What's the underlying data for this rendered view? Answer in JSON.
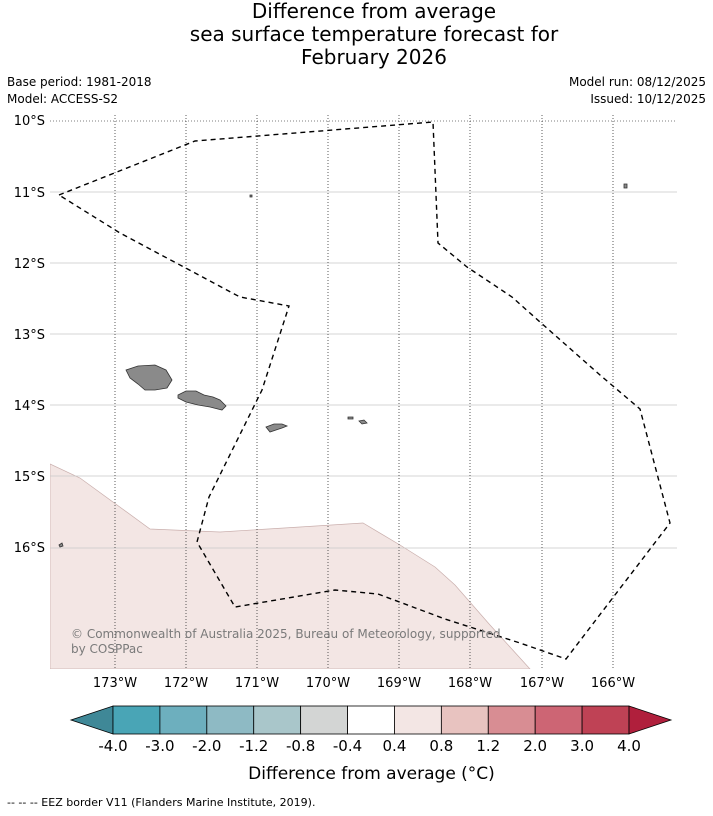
{
  "title": {
    "line1": "Difference from average",
    "line2": "sea surface temperature forecast for",
    "line3": "February 2026"
  },
  "meta": {
    "base_period": "Base period: 1981-2018",
    "model": "Model: ACCESS-S2",
    "model_run": "Model run: 08/12/2025",
    "issued": "Issued: 10/12/2025"
  },
  "map": {
    "lat_labels": [
      "10°S",
      "11°S",
      "12°S",
      "13°S",
      "14°S",
      "15°S",
      "16°S"
    ],
    "lon_labels": [
      "173°W",
      "172°W",
      "171°W",
      "170°W",
      "169°W",
      "168°W",
      "167°W",
      "166°W"
    ],
    "copyright_line1": "© Commonwealth of Australia 2025, Bureau of Meteorology, supported",
    "copyright_line2": "by COSPPac",
    "anomaly_fill_color": "#f3e6e4",
    "anomaly_category": "0.4 to 0.8",
    "land_color": "#8a8a8a",
    "eez_line": "dashed black"
  },
  "colorbar": {
    "tick_labels": [
      "-4.0",
      "-3.0",
      "-2.0",
      "-1.2",
      "-0.8",
      "-0.4",
      "0.4",
      "0.8",
      "1.2",
      "2.0",
      "3.0",
      "4.0"
    ],
    "colors": [
      "#3f8897",
      "#49a5b6",
      "#6dafbe",
      "#8ebac4",
      "#a9c6ca",
      "#d3d5d4",
      "#ffffff",
      "#f3e6e4",
      "#e8c3c0",
      "#d88d93",
      "#cd6574",
      "#bf4255",
      "#b01f3c"
    ],
    "label": "Difference from average (°C)"
  },
  "footnote": "--  --  -- EEZ border V11 (Flanders Marine Institute, 2019)."
}
